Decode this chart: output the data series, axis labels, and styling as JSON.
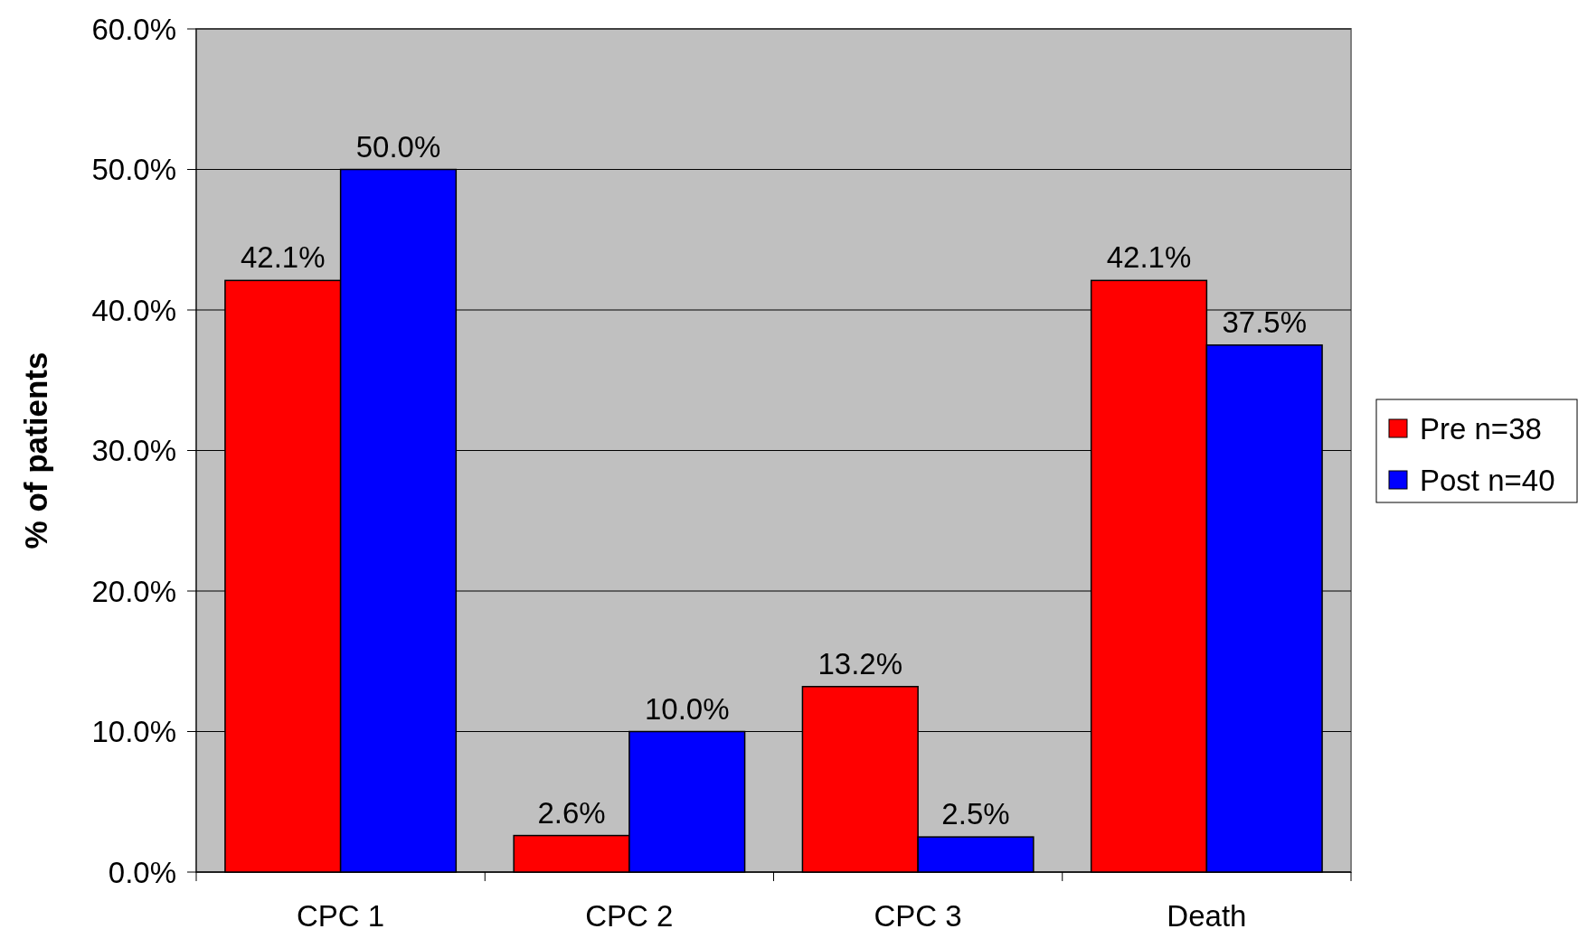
{
  "chart_data": {
    "type": "bar",
    "ylabel": "% of patients",
    "categories": [
      "CPC 1",
      "CPC 2",
      "CPC 3",
      "Death"
    ],
    "series": [
      {
        "name": "Pre n=38",
        "color": "#ff0000",
        "values": [
          42.1,
          2.6,
          13.2,
          42.1
        ],
        "value_labels": [
          "42.1%",
          "2.6%",
          "13.2%",
          "42.1%"
        ]
      },
      {
        "name": "Post n=40",
        "color": "#0000ff",
        "values": [
          50.0,
          10.0,
          2.5,
          37.5
        ],
        "value_labels": [
          "50.0%",
          "10.0%",
          "2.5%",
          "37.5%"
        ]
      }
    ],
    "ylim": [
      0,
      60
    ],
    "yticks": [
      {
        "value": 0,
        "label": "0.0%"
      },
      {
        "value": 10,
        "label": "10.0%"
      },
      {
        "value": 20,
        "label": "20.0%"
      },
      {
        "value": 30,
        "label": "30.0%"
      },
      {
        "value": 40,
        "label": "40.0%"
      },
      {
        "value": 50,
        "label": "50.0%"
      },
      {
        "value": 60,
        "label": "60.0%"
      }
    ],
    "grid": "y",
    "legend": "right"
  }
}
